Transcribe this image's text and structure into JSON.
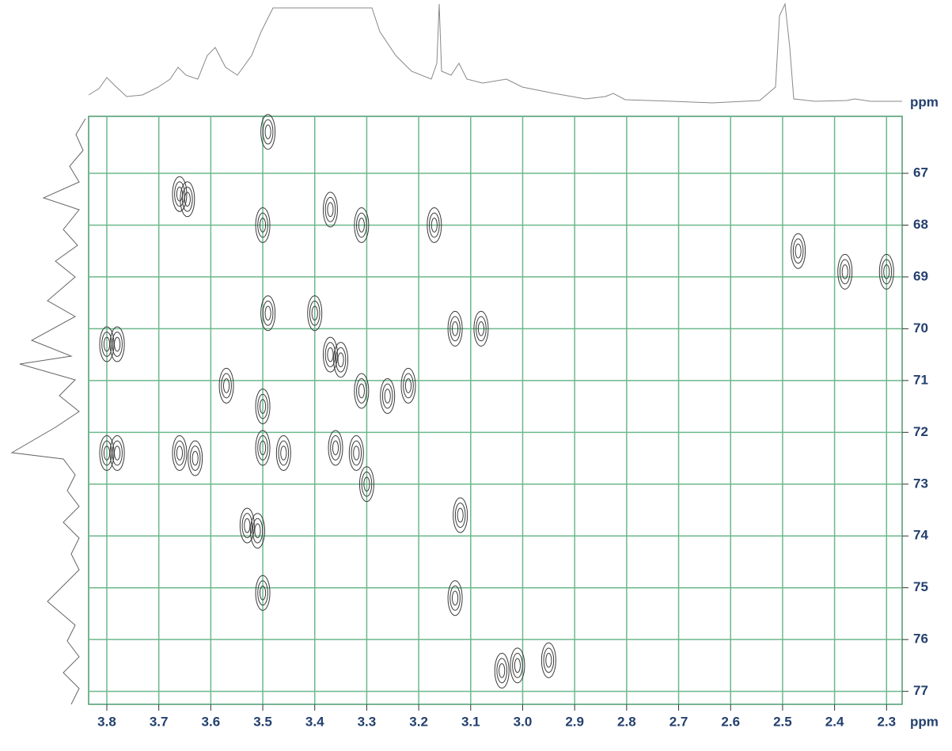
{
  "chart_data": {
    "type": "scatter",
    "xlim": [
      3.835,
      2.27
    ],
    "ylim": [
      65.9,
      77.25
    ],
    "xticks": [
      3.8,
      3.7,
      3.6,
      3.5,
      3.4,
      3.3,
      3.2,
      3.1,
      {
        "value": 3,
        "label": "3.0"
      },
      2.9,
      2.8,
      2.7,
      2.6,
      2.5,
      2.4,
      2.3
    ],
    "yticks": [
      67,
      68,
      69,
      70,
      71,
      72,
      73,
      74,
      75,
      76,
      77
    ],
    "xlabel": "ppm",
    "ylabel": "ppm",
    "grid": true,
    "grid_color": "#6cb88c",
    "series": [
      {
        "color": "#3a3a3a",
        "x": [
          3.66,
          3.645,
          3.5,
          3.49,
          3.4,
          3.37,
          3.31,
          3.17,
          2.47,
          2.38,
          2.3,
          3.13,
          3.08,
          3.8,
          3.78,
          3.57,
          3.5,
          3.37,
          3.35,
          3.31,
          3.26,
          3.22,
          3.36,
          3.32,
          3.3,
          3.8,
          3.78,
          3.66,
          3.63,
          3.5,
          3.46,
          3.53,
          3.51,
          3.5,
          3.12,
          3.13,
          3.04,
          3.01,
          2.95,
          3.49
        ],
        "values": [
          67.4,
          67.5,
          68.0,
          69.7,
          69.7,
          67.7,
          68.0,
          68.0,
          68.5,
          68.9,
          68.9,
          70.0,
          70.0,
          70.3,
          70.3,
          71.1,
          71.5,
          70.5,
          70.6,
          71.2,
          71.3,
          71.1,
          72.3,
          72.4,
          73.0,
          72.4,
          72.4,
          72.4,
          72.5,
          72.3,
          72.4,
          73.8,
          73.9,
          75.1,
          73.6,
          75.2,
          76.6,
          76.5,
          76.4,
          66.2
        ]
      }
    ]
  }
}
